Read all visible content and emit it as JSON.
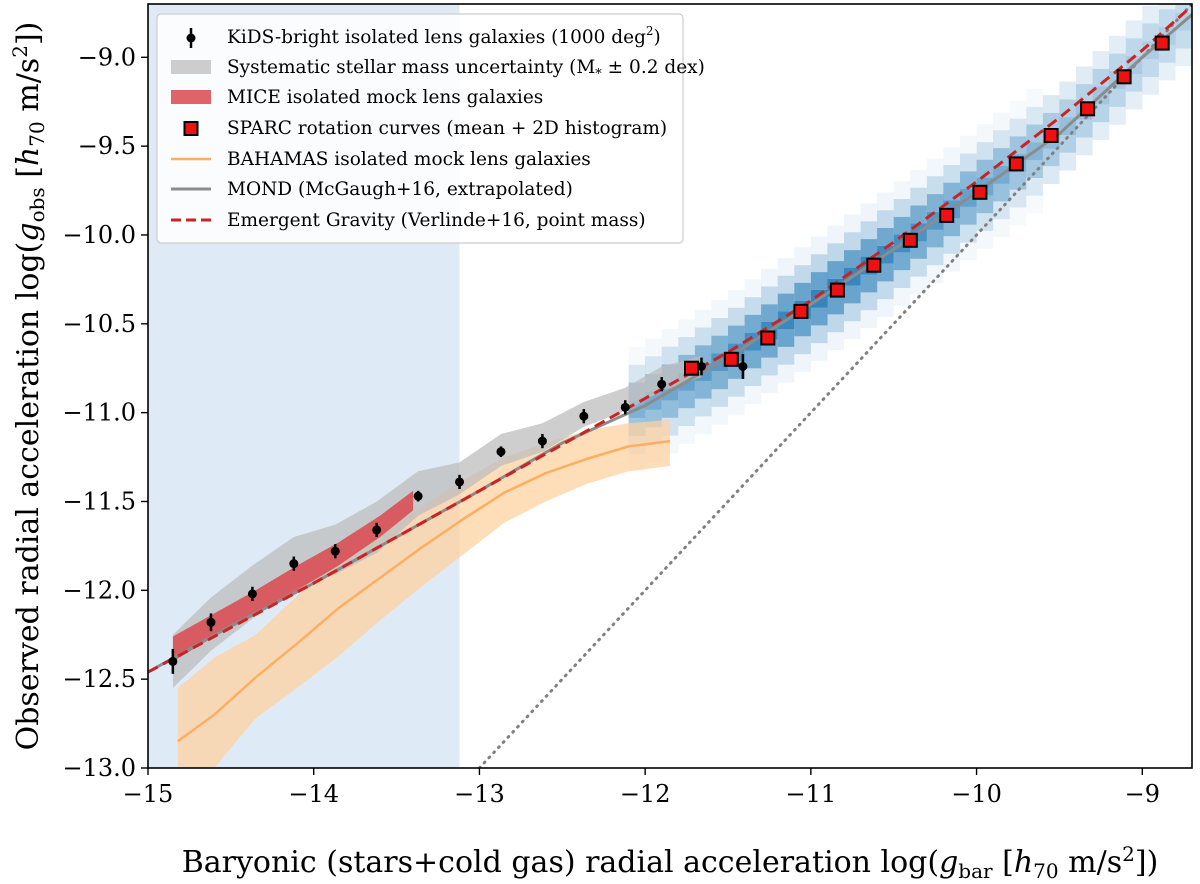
{
  "chart_data": {
    "type": "scatter",
    "xlabel": "Baryonic (stars+cold gas) radial acceleration log(g_bar [h_70 m/s^2])",
    "ylabel": "Observed radial acceleration log(g_obs [h_70 m/s^2])",
    "xlim": [
      -15,
      -8.7
    ],
    "ylim": [
      -13.0,
      -8.7
    ],
    "x_ticks": [
      -15,
      -14,
      -13,
      -12,
      -11,
      -10,
      -9
    ],
    "x_tick_labels": [
      "−15",
      "−14",
      "−13",
      "−12",
      "−11",
      "−10",
      "−9"
    ],
    "y_ticks": [
      -13.0,
      -12.5,
      -12.0,
      -11.5,
      -11.0,
      -10.5,
      -10.0,
      -9.5,
      -9.0
    ],
    "y_tick_labels": [
      "−13.0",
      "−12.5",
      "−12.0",
      "−11.5",
      "−11.0",
      "−10.5",
      "−10.0",
      "−9.5",
      "−9.0"
    ],
    "grid": false,
    "legend_position": "top-left",
    "shaded_region": {
      "x_range": [
        -15,
        -13.12
      ],
      "color": "#deebf6"
    },
    "colors": {
      "kids": "#000000",
      "systematic": "#bdbdbd",
      "mice": "#d9484c",
      "sparc_face": "#ee1111",
      "sparc_edge": "#000000",
      "bahamas": "#fdae61",
      "bahamas_band": "#fdd1a2",
      "mond": "#8c8c8c",
      "emergent": "#cc2222",
      "unity": "#808080",
      "heatmap": "#1f77b4"
    },
    "series": [
      {
        "name": "KiDS-bright isolated lens galaxies (1000 deg²)",
        "kind": "errorbar",
        "x": [
          -14.85,
          -14.62,
          -14.37,
          -14.12,
          -13.87,
          -13.62,
          -13.37,
          -13.12,
          -12.87,
          -12.62,
          -12.37,
          -12.12,
          -11.9,
          -11.66,
          -11.41
        ],
        "y": [
          -12.4,
          -12.18,
          -12.02,
          -11.85,
          -11.78,
          -11.66,
          -11.47,
          -11.39,
          -11.22,
          -11.16,
          -11.02,
          -10.97,
          -10.84,
          -10.74,
          -10.74
        ],
        "yerr": [
          0.07,
          0.05,
          0.04,
          0.04,
          0.04,
          0.04,
          0.03,
          0.04,
          0.03,
          0.04,
          0.04,
          0.04,
          0.04,
          0.05,
          0.07
        ]
      },
      {
        "name": "Systematic stellar mass uncertainty (M* ± 0.2 dex)",
        "kind": "band",
        "x": [
          -14.85,
          -14.62,
          -14.37,
          -14.12,
          -13.87,
          -13.62,
          -13.37,
          -13.12,
          -12.87,
          -12.62,
          -12.37,
          -12.12,
          -11.9,
          -11.66
        ],
        "y_low": [
          -12.55,
          -12.34,
          -12.16,
          -11.99,
          -11.91,
          -11.79,
          -11.58,
          -11.46,
          -11.3,
          -11.22,
          -11.08,
          -10.99,
          -10.88,
          -10.8
        ],
        "y_high": [
          -12.25,
          -12.04,
          -11.86,
          -11.7,
          -11.63,
          -11.5,
          -11.33,
          -11.28,
          -11.12,
          -11.06,
          -10.94,
          -10.86,
          -10.74,
          -10.68
        ]
      },
      {
        "name": "MICE isolated mock lens galaxies",
        "kind": "band",
        "x": [
          -14.85,
          -14.6,
          -14.35,
          -14.1,
          -13.85,
          -13.6,
          -13.4
        ],
        "y_low": [
          -12.4,
          -12.26,
          -12.14,
          -12.0,
          -11.86,
          -11.7,
          -11.55
        ],
        "y_high": [
          -12.26,
          -12.13,
          -12.0,
          -11.86,
          -11.73,
          -11.58,
          -11.44
        ]
      },
      {
        "name": "SPARC rotation curves (mean + 2D histogram)",
        "kind": "squares",
        "x": [
          -11.72,
          -11.48,
          -11.26,
          -11.06,
          -10.84,
          -10.62,
          -10.4,
          -10.18,
          -9.98,
          -9.76,
          -9.55,
          -9.33,
          -9.11,
          -8.88
        ],
        "y": [
          -10.75,
          -10.7,
          -10.58,
          -10.43,
          -10.31,
          -10.17,
          -10.03,
          -9.89,
          -9.76,
          -9.6,
          -9.44,
          -9.29,
          -9.11,
          -8.92
        ]
      },
      {
        "name": "BAHAMAS isolated mock lens galaxies",
        "kind": "line_band",
        "x": [
          -14.82,
          -14.6,
          -14.35,
          -14.1,
          -13.85,
          -13.6,
          -13.35,
          -13.1,
          -12.85,
          -12.6,
          -12.35,
          -12.1,
          -11.85
        ],
        "y": [
          -12.85,
          -12.7,
          -12.49,
          -12.3,
          -12.1,
          -11.93,
          -11.76,
          -11.6,
          -11.45,
          -11.34,
          -11.26,
          -11.19,
          -11.16
        ],
        "y_low": [
          -13.05,
          -13.0,
          -12.72,
          -12.55,
          -12.37,
          -12.17,
          -11.98,
          -11.8,
          -11.62,
          -11.5,
          -11.4,
          -11.33,
          -11.3
        ],
        "y_high": [
          -12.55,
          -12.38,
          -12.25,
          -12.03,
          -11.83,
          -11.68,
          -11.53,
          -11.38,
          -11.25,
          -11.17,
          -11.1,
          -11.06,
          -11.04
        ]
      },
      {
        "name": "MOND (McGaugh+16, extrapolated)",
        "kind": "line",
        "x": [
          -15,
          -14.5,
          -14,
          -13.5,
          -13,
          -12.5,
          -12,
          -11.5,
          -11,
          -10.5,
          -10,
          -9.5,
          -9,
          -8.7
        ],
        "y": [
          -12.46,
          -12.2,
          -11.96,
          -11.7,
          -11.44,
          -11.17,
          -10.96,
          -10.69,
          -10.39,
          -10.08,
          -9.76,
          -9.43,
          -9.0,
          -8.76
        ]
      },
      {
        "name": "Emergent Gravity (Verlinde+16, point mass)",
        "kind": "dashed_line",
        "x": [
          -15,
          -14.5,
          -14,
          -13.5,
          -13,
          -12.5,
          -12,
          -11.5,
          -11,
          -10.5,
          -10,
          -9.5,
          -9,
          -8.7
        ],
        "y": [
          -12.46,
          -12.21,
          -11.96,
          -11.7,
          -11.44,
          -11.18,
          -10.92,
          -10.66,
          -10.37,
          -10.04,
          -9.7,
          -9.34,
          -8.96,
          -8.71
        ]
      },
      {
        "name": "one-to-one",
        "kind": "dotted_line",
        "x": [
          -13.0,
          -8.7
        ],
        "y": [
          -13.0,
          -8.7
        ]
      }
    ]
  },
  "legend": {
    "items": [
      {
        "key": "kids",
        "text": "KiDS-bright isolated lens galaxies (1000 deg",
        "sup": "2",
        "tail": ")"
      },
      {
        "key": "systematic",
        "text": "Systematic stellar mass uncertainty (M",
        "sub": "*",
        "tail": " ± 0.2 dex)"
      },
      {
        "key": "mice",
        "text": "MICE isolated mock lens galaxies"
      },
      {
        "key": "sparc",
        "text": "SPARC rotation curves (mean + 2D histogram)"
      },
      {
        "key": "bahamas",
        "text": "BAHAMAS isolated mock lens galaxies"
      },
      {
        "key": "mond",
        "text": "MOND (McGaugh+16, extrapolated)"
      },
      {
        "key": "emergent",
        "text": "Emergent Gravity (Verlinde+16, point mass)"
      }
    ]
  },
  "axis_titles": {
    "x": {
      "pre": "Baryonic (stars+cold gas) radial acceleration log(",
      "var": "g",
      "sub": "bar",
      "mid": " [",
      "h": "h",
      "hsub": "70",
      "units": " m/s",
      "sup": "2",
      "post": "])"
    },
    "y": {
      "pre": "Observed radial acceleration log(",
      "var": "g",
      "sub": "obs",
      "mid": " [",
      "h": "h",
      "hsub": "70",
      "units": " m/s",
      "sup": "2",
      "post": "])"
    }
  }
}
